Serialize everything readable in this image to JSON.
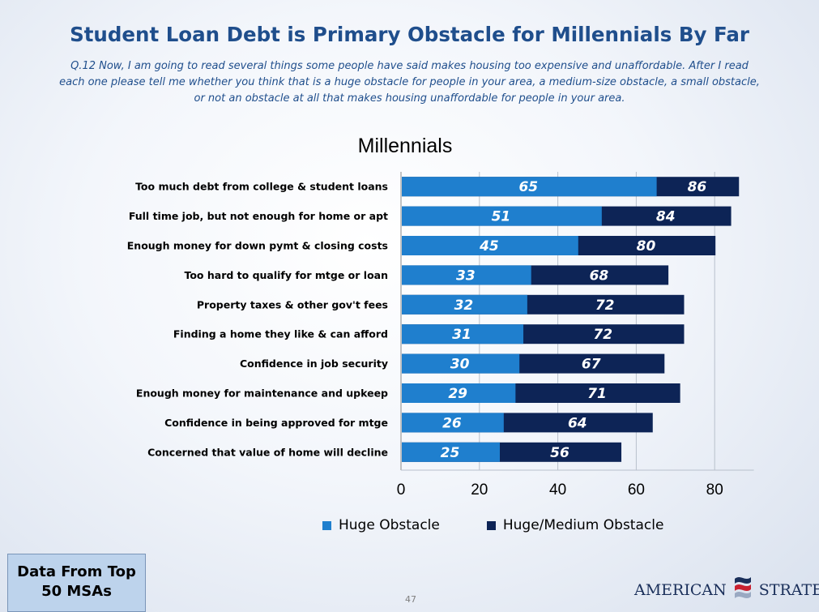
{
  "header": {
    "title": "Student Loan Debt is Primary Obstacle for Millennials By Far",
    "question_lines": [
      "Q.12 Now, I am going to read several things some people have said makes housing too expensive and unaffordable. After I read",
      "each one please tell me whether you think that is a huge obstacle for people in your area, a medium-size obstacle, a small obstacle,",
      "or not an obstacle at all that makes housing unaffordable for people in your area."
    ]
  },
  "chart_data": {
    "type": "bar",
    "orientation": "horizontal",
    "title": "Millennials",
    "categories": [
      "Too much debt from college & student loans",
      "Full time job, but not enough for home or apt",
      "Enough money for down pymt & closing costs",
      "Too hard to qualify for mtge or loan",
      "Property taxes & other gov't fees",
      "Finding a home they like & can afford",
      "Confidence in job security",
      "Enough money for maintenance and upkeep",
      "Confidence in being approved for mtge",
      "Concerned that value of home will decline"
    ],
    "series": [
      {
        "name": "Huge Obstacle",
        "color": "#1f7fce",
        "values": [
          65,
          51,
          45,
          33,
          32,
          31,
          30,
          29,
          26,
          25
        ]
      },
      {
        "name": "Huge/Medium Obstacle",
        "color": "#0d2456",
        "values": [
          86,
          84,
          80,
          68,
          72,
          72,
          67,
          71,
          64,
          56
        ]
      }
    ],
    "xticks": [
      "0",
      "20",
      "40",
      "60",
      "80"
    ],
    "xlim": [
      0,
      90
    ],
    "grid": true,
    "legend_position": "bottom"
  },
  "footer": {
    "data_box": [
      "Data From Top",
      "50 MSAs"
    ],
    "page_number": "47",
    "logo_left": "AMERICAN",
    "logo_right": "STRATEGI"
  }
}
